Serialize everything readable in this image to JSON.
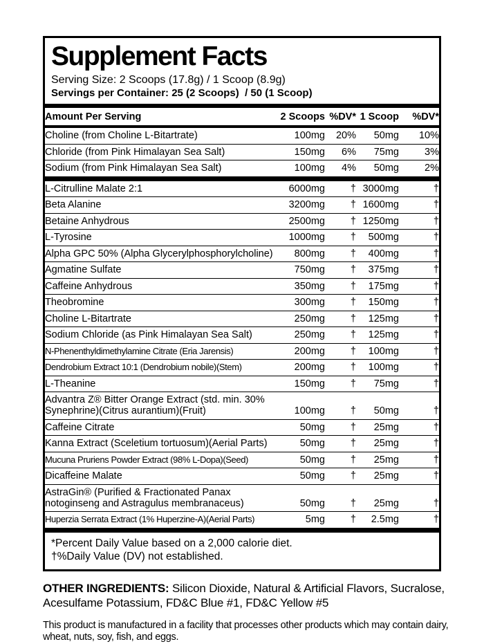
{
  "panel": {
    "title": "Supplement Facts",
    "serving_size": "Serving Size: 2 Scoops (17.8g) / 1 Scoop (8.9g)",
    "servings_per_container": "Servings per Container: 25 (2 Scoops)  / 50 (1 Scoop)",
    "columns": {
      "amount_per_serving": "Amount Per Serving",
      "two_scoops": "2 Scoops",
      "dv_a": "%DV*",
      "one_scoop": "1 Scoop",
      "dv_b": "%DV*"
    },
    "dv_rows": [
      {
        "lines": [
          "Choline (from Choline L-Bitartrate)"
        ],
        "scoop2": "100mg",
        "dv2": "20%",
        "scoop1": "50mg",
        "dv1": "10%"
      },
      {
        "lines": [
          "Chloride (from Pink Himalayan Sea Salt)"
        ],
        "scoop2": "150mg",
        "dv2": "6%",
        "scoop1": "75mg",
        "dv1": "3%"
      },
      {
        "lines": [
          "Sodium (from Pink Himalayan Sea Salt)"
        ],
        "scoop2": "100mg",
        "dv2": "4%",
        "scoop1": "50mg",
        "dv1": "2%"
      }
    ],
    "ingredient_rows": [
      {
        "lines": [
          "L-Citrulline Malate 2:1"
        ],
        "scoop2": "6000mg",
        "dv2": "†",
        "scoop1": "3000mg",
        "dv1": "†"
      },
      {
        "lines": [
          "Beta Alanine"
        ],
        "scoop2": "3200mg",
        "dv2": "†",
        "scoop1": "1600mg",
        "dv1": "†"
      },
      {
        "lines": [
          "Betaine Anhydrous"
        ],
        "scoop2": "2500mg",
        "dv2": "†",
        "scoop1": "1250mg",
        "dv1": "†"
      },
      {
        "lines": [
          "L-Tyrosine"
        ],
        "scoop2": "1000mg",
        "dv2": "†",
        "scoop1": "500mg",
        "dv1": "†"
      },
      {
        "lines": [
          "Alpha GPC 50% (Alpha Glycerylphosphorylcholine)"
        ],
        "scoop2": "800mg",
        "dv2": "†",
        "scoop1": "400mg",
        "dv1": "†"
      },
      {
        "lines": [
          "Agmatine Sulfate"
        ],
        "scoop2": "750mg",
        "dv2": "†",
        "scoop1": "375mg",
        "dv1": "†"
      },
      {
        "lines": [
          "Caffeine Anhydrous"
        ],
        "scoop2": "350mg",
        "dv2": "†",
        "scoop1": "175mg",
        "dv1": "†"
      },
      {
        "lines": [
          "Theobromine"
        ],
        "scoop2": "300mg",
        "dv2": "†",
        "scoop1": "150mg",
        "dv1": "†"
      },
      {
        "lines": [
          "Choline L-Bitartrate"
        ],
        "scoop2": "250mg",
        "dv2": "†",
        "scoop1": "125mg",
        "dv1": "†"
      },
      {
        "lines": [
          "Sodium Chloride (as Pink Himalayan Sea Salt)"
        ],
        "scoop2": "250mg",
        "dv2": "†",
        "scoop1": "125mg",
        "dv1": "†"
      },
      {
        "lines": [
          "N-Phenenthyldimethylamine Citrate (Eria Jarensis)"
        ],
        "scoop2": "200mg",
        "dv2": "†",
        "scoop1": "100mg",
        "dv1": "†",
        "condensed": true
      },
      {
        "lines": [
          "Dendrobium Extract 10:1 (Dendrobium nobile)(Stem)"
        ],
        "scoop2": "200mg",
        "dv2": "†",
        "scoop1": "100mg",
        "dv1": "†",
        "condensed": true
      },
      {
        "lines": [
          "L-Theanine"
        ],
        "scoop2": "150mg",
        "dv2": "†",
        "scoop1": "75mg",
        "dv1": "†"
      },
      {
        "lines": [
          "Advantra Z® Bitter Orange Extract (std. min. 30%",
          "Synephrine)(Citrus aurantium)(Fruit)"
        ],
        "scoop2": "100mg",
        "dv2": "†",
        "scoop1": "50mg",
        "dv1": "†"
      },
      {
        "lines": [
          "Caffeine Citrate"
        ],
        "scoop2": "50mg",
        "dv2": "†",
        "scoop1": "25mg",
        "dv1": "†"
      },
      {
        "lines": [
          "Kanna Extract (Sceletium tortuosum)(Aerial Parts)"
        ],
        "scoop2": "50mg",
        "dv2": "†",
        "scoop1": "25mg",
        "dv1": "†"
      },
      {
        "lines": [
          "Mucuna Pruriens Powder Extract (98% L-Dopa)(Seed)"
        ],
        "scoop2": "50mg",
        "dv2": "†",
        "scoop1": "25mg",
        "dv1": "†",
        "condensed": true
      },
      {
        "lines": [
          "Dicaffeine Malate"
        ],
        "scoop2": "50mg",
        "dv2": "†",
        "scoop1": "25mg",
        "dv1": "†"
      },
      {
        "lines": [
          "AstraGin® (Purified & Fractionated Panax",
          "notoginseng and Astragulus membranaceus)"
        ],
        "scoop2": "50mg",
        "dv2": "†",
        "scoop1": "25mg",
        "dv1": "†"
      },
      {
        "lines": [
          "Huperzia Serrata Extract (1% Huperzine-A)(Aerial Parts)"
        ],
        "scoop2": "5mg",
        "dv2": "†",
        "scoop1": "2.5mg",
        "dv1": "†",
        "condensed": true
      }
    ],
    "footnotes": [
      "*Percent Daily Value based on a 2,000 calorie diet.",
      "†%Daily Value (DV) not established."
    ]
  },
  "other_ingredients": {
    "label": "OTHER INGREDIENTS:",
    "text": " Silicon Dioxide, Natural & Artificial Flavors, Sucralose, Acesulfame Potassium, FD&C Blue #1, FD&C Yellow #5"
  },
  "allergen_notice": "This product is manufactured in a facility that processes other products which may contain dairy, wheat, nuts, soy, fish, and eggs."
}
